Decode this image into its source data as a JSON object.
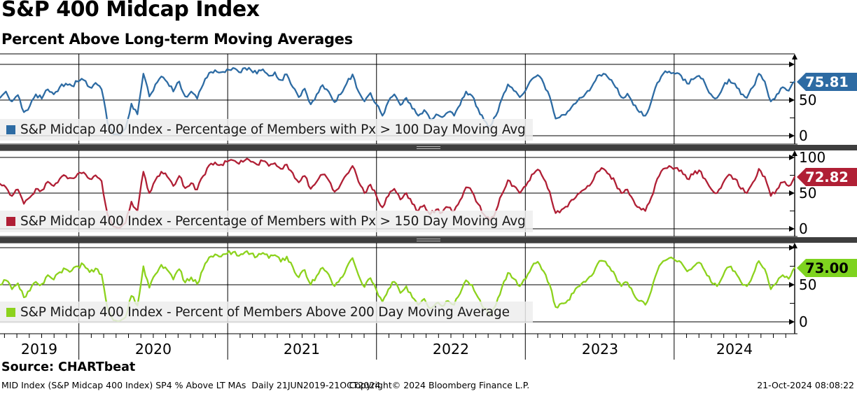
{
  "header": {
    "title": "S&P 400 Midcap Index",
    "subtitle": "Percent Above Long-term Moving Averages"
  },
  "footer": {
    "source": "Source: CHARTbeat",
    "description": "MID Index (S&P Midcap 400 Index) SP4 % Above LT MAs  Daily 21JUN2019-21OCT2024",
    "copyright": "Copyright© 2024 Bloomberg Finance L.P.",
    "timestamp": "21-Oct-2024 08:08:22"
  },
  "colors": {
    "axis": "#000000",
    "panel_divider": "#3e3e3e",
    "legend_background": "#ededed",
    "blue_line": "#2d6ba3",
    "red_line": "#b01f35",
    "green_line": "#8cd21d"
  },
  "chart_data": {
    "type": "line",
    "title": "S&P 400 Midcap Index",
    "subtitle": "Percent Above Long-term Moving Averages",
    "x_ticks": [
      "2019",
      "2020",
      "2021",
      "2022",
      "2023",
      "2024"
    ],
    "x_range": [
      2019.47,
      2024.81
    ],
    "x_range_label": "21JUN2019-21OCT2024",
    "sampling": "approximately biweekly values read from daily chart",
    "ylim": [
      0,
      100
    ],
    "y_ticks": [
      0,
      50,
      100
    ],
    "grid": true,
    "legend_position": "bottom-left-inside-each-panel",
    "panels": [
      {
        "legend": "S&P Midcap 400 Index - Percentage of Members with Px > 100 Day Moving Avg",
        "color": "#2d6ba3",
        "badge": {
          "value": "75.81",
          "bg": "#2d6ba3",
          "text_color": "#ffffff"
        },
        "ticks": {
          "t50": "50",
          "t0": "0"
        }
      },
      {
        "legend": "S&P Midcap 400 Index - Percentage of Members with Px > 150 Day Moving Avg",
        "color": "#b01f35",
        "badge": {
          "value": "72.82",
          "bg": "#b01f35",
          "text_color": "#ffffff"
        },
        "ticks": {
          "t100": "100",
          "t50": "50",
          "t0": "0"
        }
      },
      {
        "legend": "S&P Midcap 400 Index - Percent of Members Above 200 Day Moving Average",
        "color": "#8cd21d",
        "badge": {
          "value": "73.00",
          "bg": "#7ed31f",
          "text_color": "#000000"
        },
        "ticks": {
          "t50": "50",
          "t0": "0"
        }
      }
    ],
    "series": [
      {
        "name": "S&P Midcap 400 Index - Percentage of Members with Px > 100 Day Moving Avg",
        "last_value": 75.81,
        "values": [
          53,
          62,
          48,
          57,
          33,
          42,
          58,
          52,
          65,
          58,
          68,
          73,
          70,
          76,
          78,
          68,
          74,
          65,
          18,
          2,
          1,
          10,
          45,
          30,
          87,
          55,
          72,
          83,
          75,
          62,
          76,
          55,
          62,
          52,
          72,
          88,
          92,
          89,
          93,
          95,
          89,
          95,
          92,
          87,
          93,
          84,
          89,
          78,
          86,
          68,
          54,
          66,
          44,
          58,
          71,
          62,
          47,
          58,
          73,
          86,
          62,
          48,
          60,
          44,
          28,
          48,
          58,
          43,
          53,
          38,
          28,
          36,
          23,
          30,
          26,
          33,
          28,
          43,
          62,
          56,
          38,
          22,
          13,
          28,
          52,
          72,
          63,
          54,
          64,
          79,
          85,
          73,
          55,
          24,
          29,
          34,
          44,
          53,
          59,
          68,
          84,
          87,
          79,
          68,
          54,
          59,
          43,
          33,
          28,
          48,
          74,
          87,
          90,
          87,
          84,
          73,
          79,
          84,
          73,
          58,
          53,
          68,
          79,
          73,
          58,
          53,
          68,
          87,
          76,
          48,
          58,
          68,
          63,
          75.81
        ]
      },
      {
        "name": "S&P Midcap 400 Index - Percentage of Members with Px > 150 Day Moving Avg",
        "last_value": 72.82,
        "values": [
          63,
          58,
          46,
          55,
          35,
          44,
          56,
          54,
          66,
          60,
          70,
          74,
          71,
          77,
          79,
          70,
          75,
          67,
          20,
          3,
          1,
          8,
          38,
          25,
          80,
          50,
          68,
          80,
          73,
          60,
          74,
          57,
          64,
          55,
          74,
          89,
          93,
          90,
          94,
          96,
          91,
          96,
          94,
          90,
          95,
          88,
          92,
          84,
          90,
          78,
          65,
          74,
          56,
          66,
          76,
          68,
          52,
          62,
          76,
          88,
          66,
          50,
          62,
          46,
          30,
          46,
          56,
          41,
          50,
          35,
          25,
          33,
          20,
          27,
          23,
          30,
          25,
          40,
          58,
          52,
          35,
          20,
          12,
          25,
          48,
          68,
          60,
          50,
          60,
          76,
          83,
          70,
          52,
          22,
          27,
          31,
          41,
          50,
          56,
          64,
          80,
          84,
          76,
          64,
          50,
          55,
          40,
          30,
          25,
          44,
          70,
          84,
          88,
          85,
          82,
          70,
          76,
          82,
          70,
          56,
          50,
          64,
          76,
          70,
          56,
          50,
          65,
          84,
          73,
          46,
          55,
          65,
          60,
          72.82
        ]
      },
      {
        "name": "S&P Midcap 400 Index - Percent of Members Above 200 Day Moving Average",
        "last_value": 73.0,
        "values": [
          50,
          56,
          44,
          52,
          33,
          42,
          54,
          51,
          63,
          57,
          67,
          71,
          69,
          75,
          77,
          67,
          72,
          64,
          17,
          2,
          1,
          6,
          35,
          22,
          75,
          46,
          64,
          77,
          70,
          57,
          71,
          53,
          60,
          51,
          71,
          87,
          91,
          88,
          92,
          94,
          89,
          94,
          92,
          88,
          93,
          86,
          90,
          81,
          88,
          74,
          60,
          70,
          50,
          62,
          73,
          64,
          48,
          59,
          73,
          86,
          63,
          47,
          59,
          43,
          27,
          44,
          54,
          39,
          48,
          33,
          23,
          31,
          18,
          25,
          21,
          28,
          23,
          38,
          56,
          50,
          33,
          18,
          10,
          23,
          46,
          66,
          58,
          48,
          58,
          74,
          81,
          68,
          50,
          20,
          25,
          29,
          39,
          48,
          54,
          62,
          78,
          82,
          74,
          62,
          48,
          53,
          38,
          28,
          23,
          42,
          68,
          82,
          86,
          83,
          80,
          68,
          74,
          80,
          68,
          54,
          48,
          62,
          74,
          68,
          54,
          48,
          63,
          82,
          71,
          44,
          53,
          63,
          58,
          73.0
        ]
      }
    ]
  }
}
